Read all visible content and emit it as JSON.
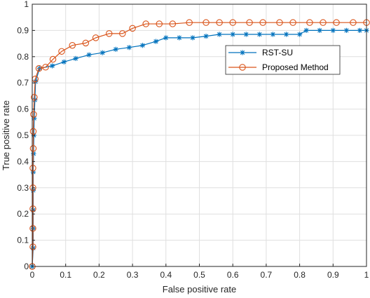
{
  "chart_data": {
    "type": "line",
    "xlabel": "False positive rate",
    "ylabel": "True positive rate",
    "xlim": [
      0,
      1
    ],
    "ylim": [
      0,
      1
    ],
    "xticks": [
      0,
      0.1,
      0.2,
      0.3,
      0.4,
      0.5,
      0.6,
      0.7,
      0.8,
      0.9,
      1
    ],
    "yticks": [
      0,
      0.1,
      0.2,
      0.3,
      0.4,
      0.5,
      0.6,
      0.7,
      0.8,
      0.9,
      1
    ],
    "xtick_labels": [
      "0",
      "0.1",
      "0.2",
      "0.3",
      "0.4",
      "0.5",
      "0.6",
      "0.7",
      "0.8",
      "0.9",
      "1"
    ],
    "ytick_labels": [
      "0",
      "0.1",
      "0.2",
      "0.3",
      "0.4",
      "0.5",
      "0.6",
      "0.7",
      "0.8",
      "0.9",
      "1"
    ],
    "grid": true,
    "legend_position": "top-right",
    "series": [
      {
        "name": "RST-SU",
        "color": "#0072BD",
        "marker": "asterisk",
        "x": [
          0,
          0.003,
          0.003,
          0.003,
          0.003,
          0.003,
          0.004,
          0.005,
          0.006,
          0.008,
          0.01,
          0.022,
          0.06,
          0.095,
          0.13,
          0.17,
          0.21,
          0.25,
          0.29,
          0.33,
          0.37,
          0.4,
          0.44,
          0.48,
          0.52,
          0.56,
          0.6,
          0.64,
          0.68,
          0.72,
          0.76,
          0.8,
          0.82,
          0.86,
          0.9,
          0.94,
          0.98,
          1
        ],
        "y": [
          0,
          0.07,
          0.145,
          0.215,
          0.29,
          0.36,
          0.43,
          0.5,
          0.565,
          0.635,
          0.705,
          0.755,
          0.765,
          0.78,
          0.793,
          0.807,
          0.815,
          0.828,
          0.835,
          0.843,
          0.858,
          0.872,
          0.872,
          0.872,
          0.878,
          0.885,
          0.885,
          0.885,
          0.885,
          0.885,
          0.885,
          0.885,
          0.9,
          0.9,
          0.9,
          0.9,
          0.9,
          0.9
        ]
      },
      {
        "name": "Proposed Method",
        "color": "#D95319",
        "marker": "circle",
        "x": [
          0,
          0.002,
          0.002,
          0.002,
          0.002,
          0.002,
          0.003,
          0.003,
          0.004,
          0.006,
          0.009,
          0.02,
          0.04,
          0.062,
          0.088,
          0.12,
          0.16,
          0.19,
          0.23,
          0.27,
          0.3,
          0.34,
          0.38,
          0.42,
          0.47,
          0.52,
          0.56,
          0.6,
          0.65,
          0.69,
          0.74,
          0.78,
          0.83,
          0.87,
          0.91,
          0.96,
          1
        ],
        "y": [
          0,
          0.075,
          0.145,
          0.22,
          0.3,
          0.375,
          0.45,
          0.515,
          0.58,
          0.645,
          0.715,
          0.755,
          0.76,
          0.79,
          0.82,
          0.843,
          0.852,
          0.872,
          0.888,
          0.888,
          0.908,
          0.925,
          0.925,
          0.925,
          0.93,
          0.93,
          0.93,
          0.93,
          0.93,
          0.93,
          0.93,
          0.93,
          0.93,
          0.93,
          0.93,
          0.93,
          0.93
        ]
      }
    ]
  }
}
